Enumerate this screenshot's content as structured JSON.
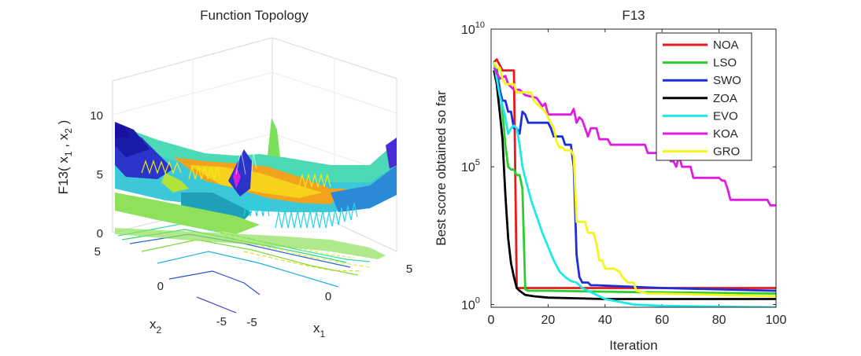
{
  "left_panel": {
    "title": "Function Topology",
    "x1_label": "x",
    "x1_sub": "1",
    "x2_label": "x",
    "x2_sub": "2",
    "z_label_parts": [
      "F13( x",
      "1",
      " , x",
      "2",
      " )"
    ],
    "x1_ticks": [
      "-5",
      "0",
      "5"
    ],
    "x2_ticks": [
      "-5",
      "0",
      "5"
    ],
    "z_ticks": [
      "0",
      "5",
      "10"
    ]
  },
  "chart_data": {
    "type": "line",
    "title": "F13",
    "xlabel": "Iteration",
    "ylabel": "Best score obtained so far",
    "xlim": [
      0,
      100
    ],
    "ylim_log10": [
      -0.1,
      10
    ],
    "yscale": "log",
    "x_ticks": [
      "0",
      "20",
      "40",
      "60",
      "80",
      "100"
    ],
    "y_ticks": [
      {
        "base": "10",
        "exp": "0",
        "log10": 0
      },
      {
        "base": "10",
        "exp": "5",
        "log10": 5
      },
      {
        "base": "10",
        "exp": "10",
        "log10": 10
      }
    ],
    "legend_position": "top-right",
    "series": [
      {
        "name": "NOA",
        "color": "#e41a1c",
        "points": [
          [
            1,
            8.8
          ],
          [
            2,
            8.9
          ],
          [
            3,
            8.7
          ],
          [
            4,
            8.5
          ],
          [
            7,
            8.5
          ],
          [
            8,
            8.5
          ],
          [
            9,
            0.6
          ],
          [
            10,
            0.6
          ],
          [
            12,
            0.6
          ],
          [
            30,
            0.6
          ],
          [
            60,
            0.6
          ],
          [
            100,
            0.6
          ]
        ]
      },
      {
        "name": "LSO",
        "color": "#2ecc2e",
        "points": [
          [
            1,
            8.8
          ],
          [
            2,
            8.6
          ],
          [
            3,
            7.9
          ],
          [
            4,
            7.0
          ],
          [
            5,
            5.8
          ],
          [
            6,
            5.0
          ],
          [
            7,
            4.9
          ],
          [
            8,
            4.9
          ],
          [
            9,
            4.7
          ],
          [
            10,
            4.7
          ],
          [
            11,
            4.2
          ],
          [
            12,
            0.55
          ],
          [
            13,
            0.5
          ],
          [
            20,
            0.5
          ],
          [
            50,
            0.45
          ],
          [
            100,
            0.4
          ]
        ]
      },
      {
        "name": "SWO",
        "color": "#1f2fd6",
        "points": [
          [
            1,
            8.8
          ],
          [
            2,
            8.4
          ],
          [
            3,
            7.8
          ],
          [
            4,
            7.4
          ],
          [
            5,
            7.4
          ],
          [
            6,
            7.0
          ],
          [
            7,
            7.0
          ],
          [
            8,
            6.4
          ],
          [
            9,
            6.4
          ],
          [
            10,
            6.2
          ],
          [
            11,
            7.0
          ],
          [
            12,
            6.9
          ],
          [
            13,
            6.6
          ],
          [
            20,
            6.6
          ],
          [
            21,
            6.4
          ],
          [
            22,
            6.1
          ],
          [
            25,
            6.1
          ],
          [
            26,
            5.8
          ],
          [
            28,
            5.8
          ],
          [
            29,
            5.0
          ],
          [
            30,
            1.8
          ],
          [
            31,
            1.0
          ],
          [
            32,
            0.8
          ],
          [
            34,
            0.8
          ],
          [
            35,
            0.7
          ],
          [
            36,
            0.7
          ],
          [
            37,
            0.7
          ],
          [
            60,
            0.6
          ],
          [
            100,
            0.5
          ]
        ]
      },
      {
        "name": "ZOA",
        "color": "#000000",
        "points": [
          [
            1,
            8.5
          ],
          [
            2,
            8.0
          ],
          [
            3,
            7.0
          ],
          [
            4,
            6.0
          ],
          [
            5,
            4.0
          ],
          [
            6,
            2.4
          ],
          [
            7,
            1.5
          ],
          [
            8,
            1.0
          ],
          [
            9,
            0.6
          ],
          [
            10,
            0.5
          ],
          [
            12,
            0.35
          ],
          [
            15,
            0.3
          ],
          [
            20,
            0.25
          ],
          [
            40,
            0.2
          ],
          [
            60,
            0.2
          ],
          [
            100,
            0.2
          ]
        ]
      },
      {
        "name": "EVO",
        "color": "#1ee8e8",
        "points": [
          [
            1,
            8.8
          ],
          [
            2,
            8.2
          ],
          [
            3,
            7.6
          ],
          [
            4,
            7.2
          ],
          [
            5,
            6.8
          ],
          [
            6,
            6.2
          ],
          [
            7,
            6.4
          ],
          [
            8,
            6.5
          ],
          [
            9,
            6.4
          ],
          [
            10,
            5.8
          ],
          [
            11,
            5.0
          ],
          [
            12,
            4.6
          ],
          [
            14,
            3.8
          ],
          [
            16,
            3.2
          ],
          [
            18,
            2.6
          ],
          [
            20,
            2.1
          ],
          [
            22,
            1.6
          ],
          [
            24,
            1.2
          ],
          [
            26,
            1.0
          ],
          [
            28,
            0.85
          ],
          [
            30,
            0.8
          ],
          [
            32,
            0.6
          ],
          [
            34,
            0.5
          ],
          [
            36,
            0.4
          ],
          [
            38,
            0.3
          ],
          [
            40,
            0.2
          ],
          [
            45,
            0.1
          ],
          [
            50,
            0.0
          ],
          [
            60,
            -0.05
          ],
          [
            80,
            -0.08
          ],
          [
            100,
            -0.1
          ]
        ]
      },
      {
        "name": "KOA",
        "color": "#e21be2",
        "points": [
          [
            1,
            8.6
          ],
          [
            3,
            8.2
          ],
          [
            5,
            8.3
          ],
          [
            6,
            8.0
          ],
          [
            8,
            7.8
          ],
          [
            10,
            7.8
          ],
          [
            12,
            7.6
          ],
          [
            16,
            7.5
          ],
          [
            18,
            7.2
          ],
          [
            19,
            7.3
          ],
          [
            20,
            6.9
          ],
          [
            28,
            6.9
          ],
          [
            29,
            7.1
          ],
          [
            30,
            6.6
          ],
          [
            31,
            6.8
          ],
          [
            32,
            6.7
          ],
          [
            33,
            6.4
          ],
          [
            34,
            6.1
          ],
          [
            35,
            6.4
          ],
          [
            37,
            6.4
          ],
          [
            38,
            6.0
          ],
          [
            41,
            6.0
          ],
          [
            42,
            5.8
          ],
          [
            45,
            5.8
          ],
          [
            48,
            5.8
          ],
          [
            50,
            5.8
          ],
          [
            54,
            5.8
          ],
          [
            55,
            5.5
          ],
          [
            60,
            5.5
          ],
          [
            62,
            5.5
          ],
          [
            63,
            5.2
          ],
          [
            64,
            5.2
          ],
          [
            65,
            5.0
          ],
          [
            66,
            5.4
          ],
          [
            67,
            5.0
          ],
          [
            68,
            5.0
          ],
          [
            70,
            5.0
          ],
          [
            71,
            4.6
          ],
          [
            80,
            4.6
          ],
          [
            81,
            4.5
          ],
          [
            82,
            4.5
          ],
          [
            83,
            4.2
          ],
          [
            84,
            3.8
          ],
          [
            97,
            3.8
          ],
          [
            98,
            3.6
          ],
          [
            100,
            3.6
          ]
        ]
      },
      {
        "name": "GRO",
        "color": "#f5f51a",
        "points": [
          [
            1,
            8.8
          ],
          [
            2,
            8.6
          ],
          [
            3,
            8.6
          ],
          [
            4,
            8.2
          ],
          [
            5,
            8.0
          ],
          [
            8,
            8.0
          ],
          [
            9,
            7.7
          ],
          [
            12,
            7.7
          ],
          [
            14,
            7.7
          ],
          [
            15,
            7.4
          ],
          [
            17,
            7.2
          ],
          [
            19,
            7.0
          ],
          [
            21,
            6.6
          ],
          [
            22,
            6.4
          ],
          [
            23,
            5.9
          ],
          [
            24,
            5.7
          ],
          [
            25,
            5.7
          ],
          [
            26,
            5.6
          ],
          [
            28,
            5.6
          ],
          [
            29,
            5.4
          ],
          [
            30,
            3.0
          ],
          [
            33,
            3.0
          ],
          [
            34,
            2.6
          ],
          [
            36,
            2.6
          ],
          [
            37,
            2.2
          ],
          [
            38,
            1.6
          ],
          [
            39,
            1.6
          ],
          [
            40,
            1.3
          ],
          [
            43,
            1.3
          ],
          [
            45,
            1.2
          ],
          [
            46,
            1.0
          ],
          [
            48,
            0.8
          ],
          [
            50,
            0.8
          ],
          [
            51,
            0.5
          ],
          [
            55,
            0.4
          ],
          [
            60,
            0.4
          ],
          [
            80,
            0.35
          ],
          [
            100,
            0.3
          ]
        ]
      }
    ]
  }
}
